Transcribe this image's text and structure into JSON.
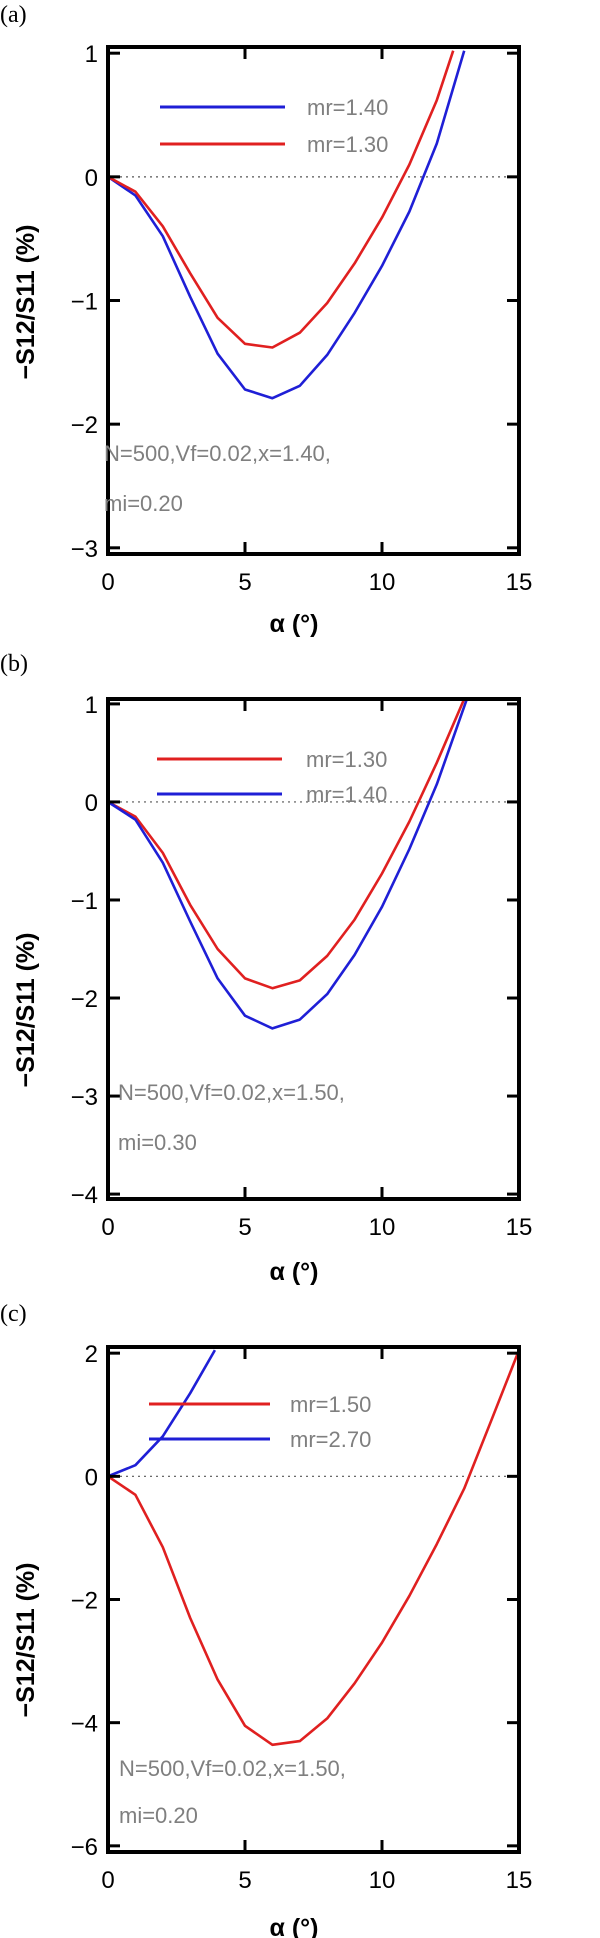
{
  "chart_data": [
    {
      "type": "line",
      "panel_label": "(a)",
      "xlabel": "α (°)",
      "ylabel": "−S12/S11 (%)",
      "xlim": [
        0,
        15
      ],
      "ylim": [
        -3.05,
        1.05
      ],
      "xticks": [
        0,
        5,
        10,
        15
      ],
      "yticks": [
        -3,
        -2,
        -1,
        0,
        1
      ],
      "xtick_labels": [
        "0",
        "5",
        "10",
        "15"
      ],
      "ytick_labels": [
        "−3",
        "−2",
        "−1",
        "0",
        "1"
      ],
      "reference_line_y": 0,
      "annotation": [
        "N=500,Vf=0.02,x=1.40,",
        "mi=0.20"
      ],
      "series": [
        {
          "name": "mr=1.40",
          "color": "#1f1fd6",
          "x": [
            0,
            1,
            2,
            3,
            4,
            5,
            6,
            7,
            8,
            9,
            10,
            11,
            12,
            13
          ],
          "y": [
            0,
            -0.15,
            -0.48,
            -0.97,
            -1.43,
            -1.72,
            -1.79,
            -1.69,
            -1.44,
            -1.1,
            -0.72,
            -0.28,
            0.27,
            1.02
          ]
        },
        {
          "name": "mr=1.30",
          "color": "#e02020",
          "x": [
            0,
            1,
            2,
            3,
            4,
            5,
            6,
            7,
            8,
            9,
            10,
            11,
            12,
            12.6
          ],
          "y": [
            0,
            -0.12,
            -0.4,
            -0.78,
            -1.14,
            -1.35,
            -1.38,
            -1.26,
            -1.02,
            -0.7,
            -0.33,
            0.1,
            0.62,
            1.02
          ]
        }
      ]
    },
    {
      "type": "line",
      "panel_label": "(b)",
      "xlabel": "α (°)",
      "ylabel": "−S12/S11 (%)",
      "xlim": [
        0,
        15
      ],
      "ylim": [
        -4.05,
        1.05
      ],
      "xticks": [
        0,
        5,
        10,
        15
      ],
      "yticks": [
        -4,
        -3,
        -2,
        -1,
        0,
        1
      ],
      "xtick_labels": [
        "0",
        "5",
        "10",
        "15"
      ],
      "ytick_labels": [
        "−4",
        "−3",
        "−2",
        "−1",
        "0",
        "1"
      ],
      "reference_line_y": 0,
      "annotation": [
        "N=500,Vf=0.02,x=1.50,",
        "mi=0.30"
      ],
      "series": [
        {
          "name": "mr=1.30",
          "color": "#e02020",
          "x": [
            0,
            1,
            2,
            3,
            4,
            5,
            6,
            7,
            8,
            9,
            10,
            11,
            12,
            13
          ],
          "y": [
            0,
            -0.15,
            -0.52,
            -1.05,
            -1.5,
            -1.8,
            -1.9,
            -1.82,
            -1.57,
            -1.2,
            -0.73,
            -0.2,
            0.4,
            1.05
          ]
        },
        {
          "name": "mr=1.40",
          "color": "#1f1fd6",
          "x": [
            0,
            1,
            2,
            3,
            4,
            5,
            6,
            7,
            8,
            9,
            10,
            11,
            12,
            13.1
          ],
          "y": [
            0,
            -0.18,
            -0.62,
            -1.22,
            -1.8,
            -2.18,
            -2.31,
            -2.22,
            -1.96,
            -1.56,
            -1.07,
            -0.48,
            0.18,
            1.05
          ]
        }
      ]
    },
    {
      "type": "line",
      "panel_label": "(c)",
      "xlabel": "α (°)",
      "ylabel": "−S12/S11 (%)",
      "xlim": [
        0,
        15
      ],
      "ylim": [
        -6.1,
        2.1
      ],
      "xticks": [
        0,
        5,
        10,
        15
      ],
      "yticks": [
        -6,
        -4,
        -2,
        0,
        2
      ],
      "xtick_labels": [
        "0",
        "5",
        "10",
        "15"
      ],
      "ytick_labels": [
        "−6",
        "−4",
        "−2",
        "0",
        "2"
      ],
      "reference_line_y": 0,
      "annotation": [
        "N=500,Vf=0.02,x=1.50,",
        "mi=0.20"
      ],
      "series": [
        {
          "name": "mr=1.50",
          "color": "#e02020",
          "x": [
            0,
            1,
            2,
            3,
            4,
            5,
            6,
            7,
            8,
            9,
            10,
            11,
            12,
            13,
            14,
            15
          ],
          "y": [
            0,
            -0.3,
            -1.15,
            -2.3,
            -3.3,
            -4.05,
            -4.36,
            -4.3,
            -3.93,
            -3.36,
            -2.7,
            -1.94,
            -1.1,
            -0.2,
            0.92,
            2.05
          ]
        },
        {
          "name": "mr=2.70",
          "color": "#1f1fd6",
          "x": [
            0,
            1,
            2,
            3,
            3.9
          ],
          "y": [
            0,
            0.18,
            0.65,
            1.35,
            2.05
          ]
        }
      ]
    }
  ]
}
